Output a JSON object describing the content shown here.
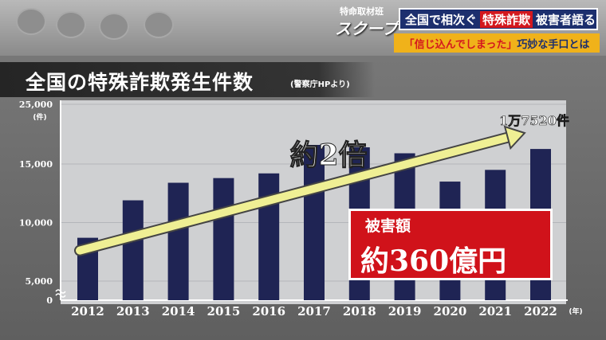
{
  "brand": {
    "kicker": "特命取材班",
    "title": "スクープ"
  },
  "headline": {
    "prefix": "全国で相次ぐ",
    "keyword": "特殊詐欺",
    "suffix": "被害者語る"
  },
  "subhead": {
    "quote": "「信じ込んでしまった」",
    "rest": "巧妙な手口とは"
  },
  "damage": {
    "label": "被害額",
    "value": "約360億円"
  },
  "colors": {
    "bar": "#1f2454",
    "arrow": "#efef94",
    "damage_box": "#d0121a",
    "headline_bg": "#1c2f6e",
    "subhead_bg": "#f0b21a"
  },
  "chart_data": {
    "type": "bar",
    "title": "全国の特殊詐欺発生件数",
    "subtitle": "(警察庁HPより)",
    "ylabel": "(件)",
    "xlabel": "(年)",
    "ylim": [
      0,
      25000
    ],
    "yticks": [
      5000,
      10000,
      15000,
      25000
    ],
    "ytick_labels": [
      "5,000",
      "10,000",
      "15,000",
      "25,000"
    ],
    "axis_break": true,
    "categories": [
      "2012",
      "2013",
      "2014",
      "2015",
      "2016",
      "2017",
      "2018",
      "2019",
      "2020",
      "2021",
      "2022"
    ],
    "values": [
      8700,
      11900,
      13400,
      13800,
      14200,
      18200,
      17800,
      16800,
      13500,
      14500,
      17520
    ],
    "data_labels": [
      {
        "category": "2022",
        "text": "1万7520件"
      }
    ],
    "annotations": [
      {
        "text": "約2倍",
        "from": "2012",
        "to": "2022"
      }
    ]
  }
}
